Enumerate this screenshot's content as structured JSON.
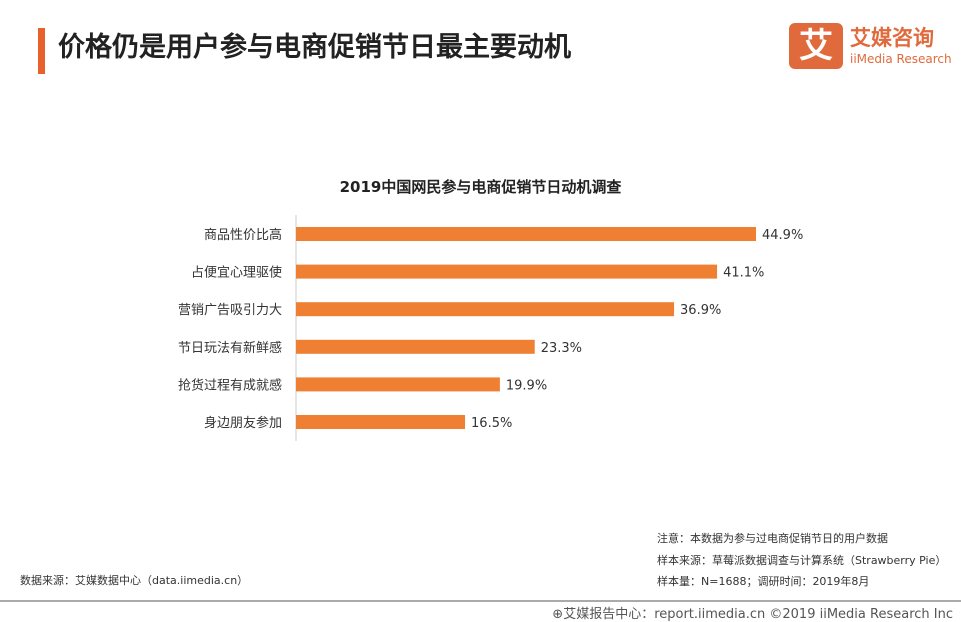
{
  "header": {
    "title": "价格仍是用户参与电商促销节日最主要动机",
    "accent_color": "#e8602c"
  },
  "logo": {
    "mark": "艾",
    "name_cn": "艾媒咨询",
    "name_en": "iiMedia Research"
  },
  "chart_data": {
    "type": "bar",
    "orientation": "horizontal",
    "title": "2019中国网民参与电商促销节日动机调查",
    "categories": [
      "商品性价比高",
      "占便宜心理驱使",
      "营销广告吸引力大",
      "节日玩法有新鲜感",
      "抢货过程有成就感",
      "身边朋友参加"
    ],
    "values": [
      44.9,
      41.1,
      36.9,
      23.3,
      19.9,
      16.5
    ],
    "labels": [
      "44.9%",
      "41.1%",
      "36.9%",
      "23.3%",
      "19.9%",
      "16.5%"
    ],
    "unit": "%",
    "color": "#ee7f33",
    "grid": false
  },
  "notes": {
    "note": "注意：本数据为参与过电商促销节日的用户数据",
    "sample_source": "样本来源：草莓派数据调查与计算系统（Strawberry Pie）",
    "sample_size": "样本量：N=1688；调研时间：2019年8月",
    "data_source": "数据来源：艾媒数据中心（data.iimedia.cn）"
  },
  "footer": {
    "text": "⊕艾媒报告中心：report.iimedia.cn   ©2019  iiMedia Research  Inc"
  }
}
